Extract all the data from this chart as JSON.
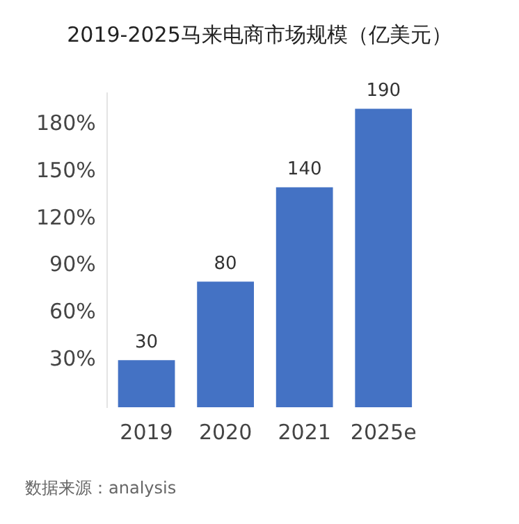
{
  "chart_data": {
    "type": "bar",
    "title": "2019-2025马来电商市场规模（亿美元）",
    "categories": [
      "2019",
      "2020",
      "2021",
      "2025e"
    ],
    "values": [
      30,
      80,
      140,
      190
    ],
    "color": "#4472c4",
    "ylim": [
      0,
      200
    ],
    "yticks": [
      {
        "value": 30,
        "label": "30%"
      },
      {
        "value": 60,
        "label": "60%"
      },
      {
        "value": 90,
        "label": "90%"
      },
      {
        "value": 120,
        "label": "120%"
      },
      {
        "value": 150,
        "label": "150%"
      },
      {
        "value": 180,
        "label": "180%"
      }
    ],
    "data_labels": true,
    "grid": false,
    "legend": false,
    "annotations": [
      "数据来源：analysis"
    ]
  }
}
